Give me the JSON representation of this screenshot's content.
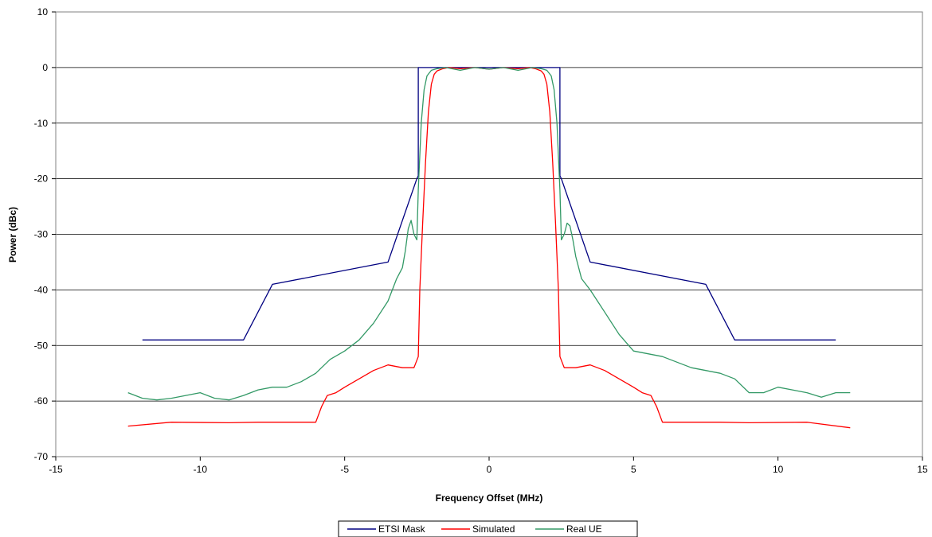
{
  "chart_data": {
    "type": "line",
    "title": "",
    "xlabel": "Frequency Offset (MHz)",
    "ylabel": "Power (dBc)",
    "xlim": [
      -15,
      15
    ],
    "ylim": [
      -70,
      10
    ],
    "x_ticks": [
      -15,
      -10,
      -5,
      0,
      5,
      10,
      15
    ],
    "y_ticks": [
      10,
      0,
      -10,
      -20,
      -30,
      -40,
      -50,
      -60,
      -70
    ],
    "grid": "horizontal",
    "legend_position": "bottom",
    "colors": {
      "etsi": "#000080",
      "sim": "#ff0000",
      "real": "#339966"
    },
    "series": [
      {
        "name": "ETSI Mask",
        "color": "#000080",
        "x": [
          -12,
          -8.5,
          -7.5,
          -3.5,
          -2.5,
          -2.45,
          -2.45,
          2.45,
          2.45,
          2.5,
          3.5,
          7.5,
          8.5,
          12
        ],
        "y": [
          -49,
          -49,
          -39,
          -35,
          -20,
          -19.5,
          0,
          0,
          -19.5,
          -20,
          -35,
          -39,
          -49,
          -49
        ]
      },
      {
        "name": "Simulated",
        "color": "#ff0000",
        "x": [
          -12.5,
          -11,
          -9,
          -8,
          -7,
          -6.5,
          -6,
          -5.8,
          -5.6,
          -5.3,
          -5,
          -4.5,
          -4,
          -3.5,
          -3,
          -2.6,
          -2.45,
          -2.4,
          -2.3,
          -2.2,
          -2.1,
          -2.0,
          -1.9,
          -1.8,
          -1.6,
          -1.4,
          -1.0,
          -0.5,
          0,
          0.5,
          1.0,
          1.4,
          1.6,
          1.8,
          1.9,
          2.0,
          2.1,
          2.2,
          2.3,
          2.4,
          2.45,
          2.6,
          3,
          3.5,
          4,
          4.5,
          5,
          5.3,
          5.6,
          5.8,
          6,
          6.5,
          7,
          8,
          9,
          11,
          12.5
        ],
        "y": [
          -64.5,
          -63.8,
          -63.9,
          -63.8,
          -63.8,
          -63.8,
          -63.8,
          -61,
          -59,
          -58.5,
          -57.5,
          -56,
          -54.5,
          -53.5,
          -54,
          -54,
          -52,
          -40,
          -28,
          -17,
          -8,
          -3,
          -1.2,
          -0.6,
          -0.2,
          0,
          -0.2,
          0,
          -0.3,
          0,
          -0.2,
          0,
          -0.2,
          -0.6,
          -1.2,
          -3,
          -8,
          -17,
          -28,
          -40,
          -52,
          -54,
          -54,
          -53.5,
          -54.5,
          -56,
          -57.5,
          -58.5,
          -59,
          -61,
          -63.8,
          -63.8,
          -63.8,
          -63.8,
          -63.9,
          -63.8,
          -64.8
        ]
      },
      {
        "name": "Real UE",
        "color": "#339966",
        "x": [
          -12.5,
          -12,
          -11.5,
          -11,
          -10.5,
          -10,
          -9.5,
          -9,
          -8.5,
          -8,
          -7.5,
          -7,
          -6.5,
          -6,
          -5.5,
          -5,
          -4.5,
          -4,
          -3.5,
          -3.2,
          -3,
          -2.9,
          -2.8,
          -2.7,
          -2.6,
          -2.5,
          -2.45,
          -2.35,
          -2.25,
          -2.15,
          -2.0,
          -1.8,
          -1.5,
          -1.0,
          -0.5,
          0,
          0.5,
          1.0,
          1.5,
          1.8,
          2.0,
          2.15,
          2.25,
          2.35,
          2.45,
          2.5,
          2.6,
          2.7,
          2.8,
          2.9,
          3,
          3.2,
          3.5,
          4,
          4.5,
          5,
          5.5,
          6,
          6.5,
          7,
          7.5,
          8,
          8.5,
          9,
          9.5,
          10,
          10.5,
          11,
          11.5,
          12,
          12.5
        ],
        "y": [
          -58.5,
          -59.5,
          -59.8,
          -59.5,
          -59,
          -58.5,
          -59.5,
          -59.8,
          -59,
          -58,
          -57.5,
          -57.5,
          -56.5,
          -55,
          -52.5,
          -51,
          -49,
          -46,
          -42,
          -38,
          -36,
          -33,
          -29,
          -27.5,
          -30,
          -31,
          -22,
          -10,
          -4,
          -1.5,
          -0.5,
          -0.2,
          0,
          -0.5,
          0,
          -0.3,
          0,
          -0.5,
          0,
          -0.2,
          -0.5,
          -1.5,
          -4,
          -10,
          -22,
          -31,
          -30,
          -28,
          -28.5,
          -31,
          -34,
          -38,
          -40,
          -44,
          -48,
          -51,
          -51.5,
          -52,
          -53,
          -54,
          -54.5,
          -55,
          -56,
          -58.5,
          -58.5,
          -57.5,
          -58,
          -58.5,
          -59.3,
          -58.5,
          -58.5
        ]
      }
    ]
  }
}
